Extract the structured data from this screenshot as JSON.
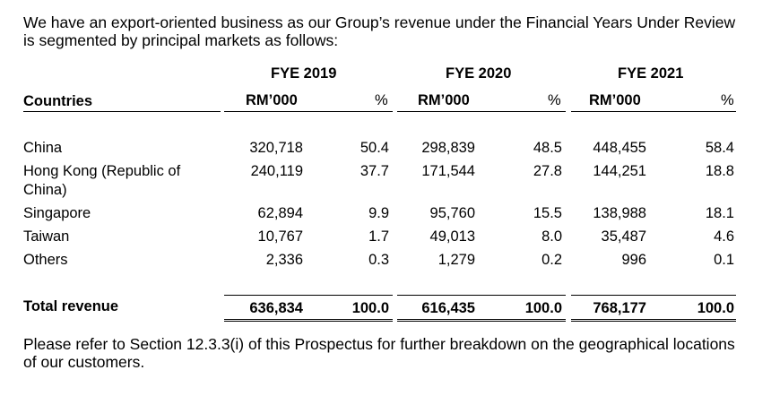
{
  "intro": "We have an export-oriented business as our Group’s revenue under the Financial Years Under Review is segmented by principal markets as follows:",
  "table": {
    "years": [
      "FYE 2019",
      "FYE 2020",
      "FYE 2021"
    ],
    "col_countries": "Countries",
    "col_rm": "RM’000",
    "col_pct": "%",
    "rows": [
      {
        "country": "China",
        "v2019": "320,718",
        "p2019": "50.4",
        "v2020": "298,839",
        "p2020": "48.5",
        "v2021": "448,455",
        "p2021": "58.4"
      },
      {
        "country": "Hong Kong (Republic of China)",
        "country_line1": "Hong Kong (Republic of",
        "country_line2": "China)",
        "v2019": "240,119",
        "p2019": "37.7",
        "v2020": "171,544",
        "p2020": "27.8",
        "v2021": "144,251",
        "p2021": "18.8"
      },
      {
        "country": "Singapore",
        "v2019": "62,894",
        "p2019": "9.9",
        "v2020": "95,760",
        "p2020": "15.5",
        "v2021": "138,988",
        "p2021": "18.1"
      },
      {
        "country": "Taiwan",
        "v2019": "10,767",
        "p2019": "1.7",
        "v2020": "49,013",
        "p2020": "8.0",
        "v2021": "35,487",
        "p2021": "4.6"
      },
      {
        "country": "Others",
        "v2019": "2,336",
        "p2019": "0.3",
        "v2020": "1,279",
        "p2020": "0.2",
        "v2021": "996",
        "p2021": "0.1"
      }
    ],
    "total": {
      "label": "Total revenue",
      "v2019": "636,834",
      "p2019": "100.0",
      "v2020": "616,435",
      "p2020": "100.0",
      "v2021": "768,177",
      "p2021": "100.0"
    }
  },
  "note": "Please refer to Section 12.3.3(i) of this Prospectus for further breakdown on the geographical locations of our customers."
}
